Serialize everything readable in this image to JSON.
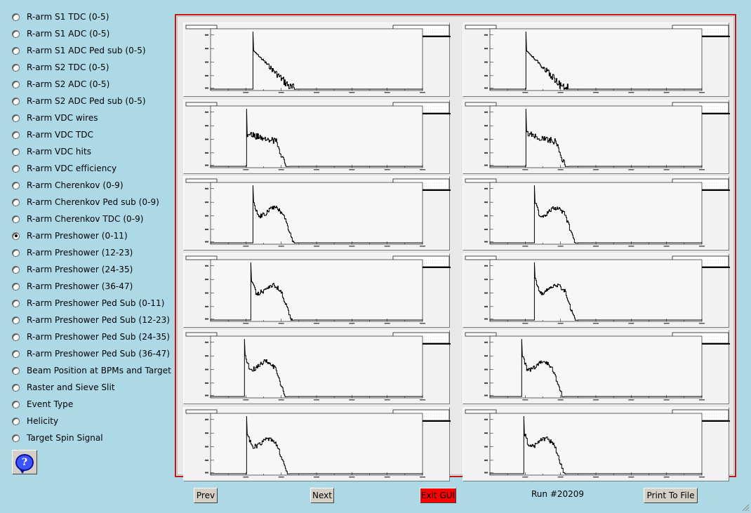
{
  "menu": {
    "items": [
      {
        "label": "R-arm S1 TDC (0-5)",
        "checked": false
      },
      {
        "label": "R-arm S1 ADC (0-5)",
        "checked": false
      },
      {
        "label": "R-arm S1 ADC Ped sub (0-5)",
        "checked": false
      },
      {
        "label": "R-arm S2 TDC (0-5)",
        "checked": false
      },
      {
        "label": "R-arm S2 ADC (0-5)",
        "checked": false
      },
      {
        "label": "R-arm S2 ADC Ped sub (0-5)",
        "checked": false
      },
      {
        "label": "R-arm VDC wires",
        "checked": false
      },
      {
        "label": "R-arm VDC TDC",
        "checked": false
      },
      {
        "label": "R-arm VDC hits",
        "checked": false
      },
      {
        "label": "R-arm VDC efficiency",
        "checked": false
      },
      {
        "label": "R-arm Cherenkov (0-9)",
        "checked": false
      },
      {
        "label": "R-arm Cherenkov Ped sub (0-9)",
        "checked": false
      },
      {
        "label": "R-arm Cherenkov TDC (0-9)",
        "checked": false
      },
      {
        "label": "R-arm Preshower (0-11)",
        "checked": true
      },
      {
        "label": "R-arm Preshower (12-23)",
        "checked": false
      },
      {
        "label": "R-arm Preshower (24-35)",
        "checked": false
      },
      {
        "label": "R-arm Preshower (36-47)",
        "checked": false
      },
      {
        "label": "R-arm Preshower Ped Sub (0-11)",
        "checked": false
      },
      {
        "label": "R-arm Preshower Ped Sub (12-23)",
        "checked": false
      },
      {
        "label": "R-arm Preshower Ped Sub (24-35)",
        "checked": false
      },
      {
        "label": "R-arm Preshower Ped Sub (36-47)",
        "checked": false
      },
      {
        "label": "Beam Position at BPMs and Target",
        "checked": false
      },
      {
        "label": "Raster and Sieve Slit",
        "checked": false
      },
      {
        "label": "Event Type",
        "checked": false
      },
      {
        "label": "Helicity",
        "checked": false
      },
      {
        "label": "Target Spin Signal",
        "checked": false
      }
    ]
  },
  "help": {
    "icon": "question-mark-icon",
    "glyph": "?"
  },
  "canvas": {
    "frame_color": "#cc1111",
    "histograms": [
      {
        "shape": "decay",
        "peak": 0.2
      },
      {
        "shape": "decay",
        "peak": 0.17
      },
      {
        "shape": "plateau",
        "peak": 0.17
      },
      {
        "shape": "plateau",
        "peak": 0.17
      },
      {
        "shape": "bump",
        "peak": 0.2
      },
      {
        "shape": "bump",
        "peak": 0.21
      },
      {
        "shape": "bump",
        "peak": 0.19
      },
      {
        "shape": "bump",
        "peak": 0.21
      },
      {
        "shape": "bump",
        "peak": 0.16
      },
      {
        "shape": "bump",
        "peak": 0.15
      },
      {
        "shape": "bump",
        "peak": 0.17
      },
      {
        "shape": "bump",
        "peak": 0.16
      }
    ]
  },
  "footer": {
    "prev_label": "Prev",
    "next_label": "Next",
    "exit_label": "Exit GUI",
    "exit_color": "#ff0000",
    "run_label": "Run #20209",
    "print_label": "Print To File"
  }
}
